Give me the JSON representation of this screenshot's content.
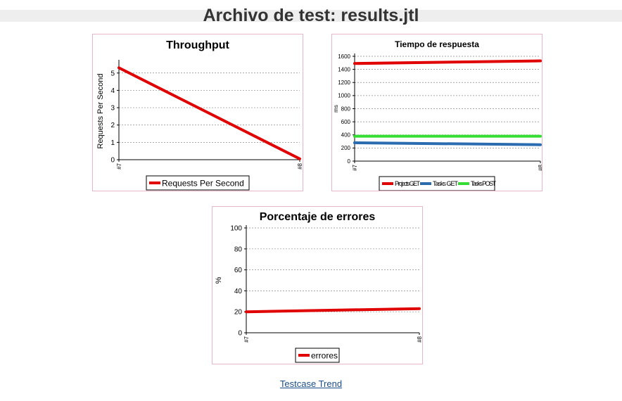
{
  "page": {
    "title": "Archivo de test: results.jtl",
    "footer_link": "Testcase Trend"
  },
  "chart_data": [
    {
      "id": "throughput",
      "type": "line",
      "title": "Throughput",
      "xlabel": "",
      "ylabel": "Requests Per Second",
      "categories": [
        "#7",
        "#8"
      ],
      "ylim": [
        0,
        5.6
      ],
      "yticks": [
        0,
        1,
        2,
        3,
        4,
        5
      ],
      "grid": true,
      "legend_position": "bottom",
      "series": [
        {
          "name": "Requests Per Second",
          "color": "#e00000",
          "values": [
            5.3,
            0.05
          ]
        }
      ]
    },
    {
      "id": "response-time",
      "type": "line",
      "title": "Tiempo de respuesta",
      "xlabel": "",
      "ylabel": "ms",
      "categories": [
        "#7",
        "#8"
      ],
      "ylim": [
        0,
        1600
      ],
      "yticks": [
        0,
        200,
        400,
        600,
        800,
        1000,
        1200,
        1400,
        1600
      ],
      "grid": true,
      "legend_position": "bottom",
      "series": [
        {
          "name": "Projects GET",
          "color": "#e00000",
          "values": [
            1490,
            1530
          ]
        },
        {
          "name": "Tasks GET",
          "color": "#2b6cb0",
          "values": [
            280,
            250
          ]
        },
        {
          "name": "Tasks POST",
          "color": "#33dd33",
          "values": [
            380,
            380
          ]
        }
      ]
    },
    {
      "id": "errors",
      "type": "line",
      "title": "Porcentaje de errores",
      "xlabel": "",
      "ylabel": "%",
      "categories": [
        "#7",
        "#8"
      ],
      "ylim": [
        0,
        100
      ],
      "yticks": [
        0,
        20,
        40,
        60,
        80,
        100
      ],
      "grid": true,
      "legend_position": "bottom",
      "series": [
        {
          "name": "errores",
          "color": "#e00000",
          "values": [
            20,
            23
          ]
        }
      ]
    }
  ]
}
